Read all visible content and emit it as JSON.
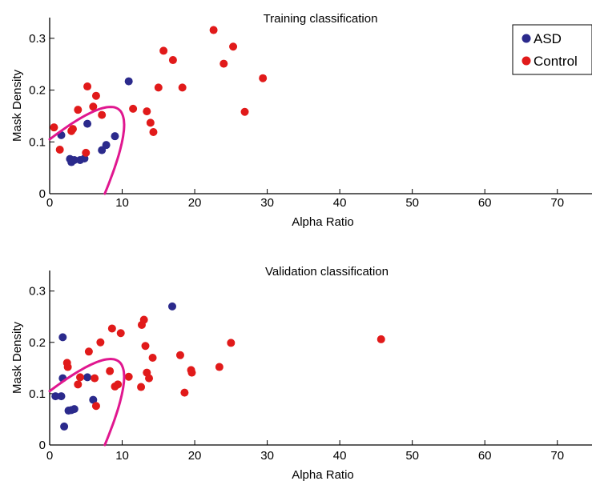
{
  "chart_data": [
    {
      "type": "scatter",
      "title": "Training classification",
      "xlabel": "Alpha Ratio",
      "ylabel": "Mask Density",
      "xlim": [
        0,
        75
      ],
      "ylim": [
        0,
        0.34
      ],
      "xticks": [
        0,
        10,
        20,
        30,
        40,
        50,
        60,
        70
      ],
      "xtick_labels": [
        "0",
        "10",
        "20",
        "30",
        "40",
        "50",
        "60",
        "70"
      ],
      "yticks": [
        0,
        0.1,
        0.2,
        0.3
      ],
      "ytick_labels": [
        "0",
        "0.1",
        "0.2",
        "0.3"
      ],
      "grid": false,
      "legend": "top-right",
      "series": [
        {
          "name": "ASD",
          "color": "#2b2a8c",
          "x": [
            1.6,
            2.8,
            3.0,
            3.4,
            4.2,
            4.8,
            5.2,
            7.2,
            7.8,
            9.0,
            10.9
          ],
          "y": [
            0.113,
            0.067,
            0.061,
            0.065,
            0.065,
            0.068,
            0.135,
            0.084,
            0.094,
            0.111,
            0.217
          ]
        },
        {
          "name": "Control",
          "color": "#e11a1a",
          "x": [
            0.6,
            1.4,
            3.0,
            3.2,
            3.9,
            5.0,
            5.2,
            6.0,
            6.4,
            7.2,
            11.5,
            13.4,
            13.9,
            14.3,
            15.0,
            15.7,
            17.0,
            18.3,
            22.6,
            24.0,
            25.3,
            26.9,
            29.4
          ],
          "y": [
            0.128,
            0.085,
            0.121,
            0.125,
            0.162,
            0.079,
            0.207,
            0.168,
            0.189,
            0.152,
            0.164,
            0.159,
            0.137,
            0.119,
            0.205,
            0.276,
            0.258,
            0.205,
            0.316,
            0.251,
            0.284,
            0.158,
            0.223
          ]
        }
      ],
      "boundary": {
        "color": "#e0178f"
      }
    },
    {
      "type": "scatter",
      "title": "Validation classification",
      "xlabel": "Alpha Ratio",
      "ylabel": "Mask Density",
      "xlim": [
        0,
        75
      ],
      "ylim": [
        0,
        0.34
      ],
      "xticks": [
        0,
        10,
        20,
        30,
        40,
        50,
        60,
        70
      ],
      "xtick_labels": [
        "0",
        "10",
        "20",
        "30",
        "40",
        "50",
        "60",
        "70"
      ],
      "yticks": [
        0,
        0.1,
        0.2,
        0.3
      ],
      "ytick_labels": [
        "0",
        "0.1",
        "0.2",
        "0.3"
      ],
      "grid": false,
      "series": [
        {
          "name": "ASD",
          "color": "#2b2a8c",
          "x": [
            0.8,
            1.6,
            1.8,
            1.8,
            2.0,
            2.6,
            3.0,
            3.4,
            5.2,
            6.0,
            16.9
          ],
          "y": [
            0.095,
            0.095,
            0.21,
            0.13,
            0.036,
            0.067,
            0.068,
            0.07,
            0.132,
            0.088,
            0.27
          ],
          "show_in_legend": false
        },
        {
          "name": "Control",
          "color": "#e11a1a",
          "x": [
            2.4,
            2.5,
            3.9,
            4.2,
            5.4,
            6.2,
            6.4,
            7.0,
            8.3,
            8.6,
            9.0,
            9.4,
            9.8,
            10.9,
            12.6,
            12.7,
            13.0,
            13.2,
            13.4,
            13.7,
            14.2,
            18.0,
            18.6,
            19.5,
            19.6,
            23.4,
            25.0,
            45.7
          ],
          "y": [
            0.16,
            0.152,
            0.118,
            0.132,
            0.182,
            0.13,
            0.076,
            0.2,
            0.144,
            0.227,
            0.114,
            0.118,
            0.218,
            0.133,
            0.113,
            0.234,
            0.244,
            0.193,
            0.141,
            0.13,
            0.17,
            0.175,
            0.102,
            0.146,
            0.141,
            0.152,
            0.199,
            0.206
          ],
          "show_in_legend": false
        }
      ],
      "boundary": {
        "color": "#e0178f"
      }
    }
  ]
}
